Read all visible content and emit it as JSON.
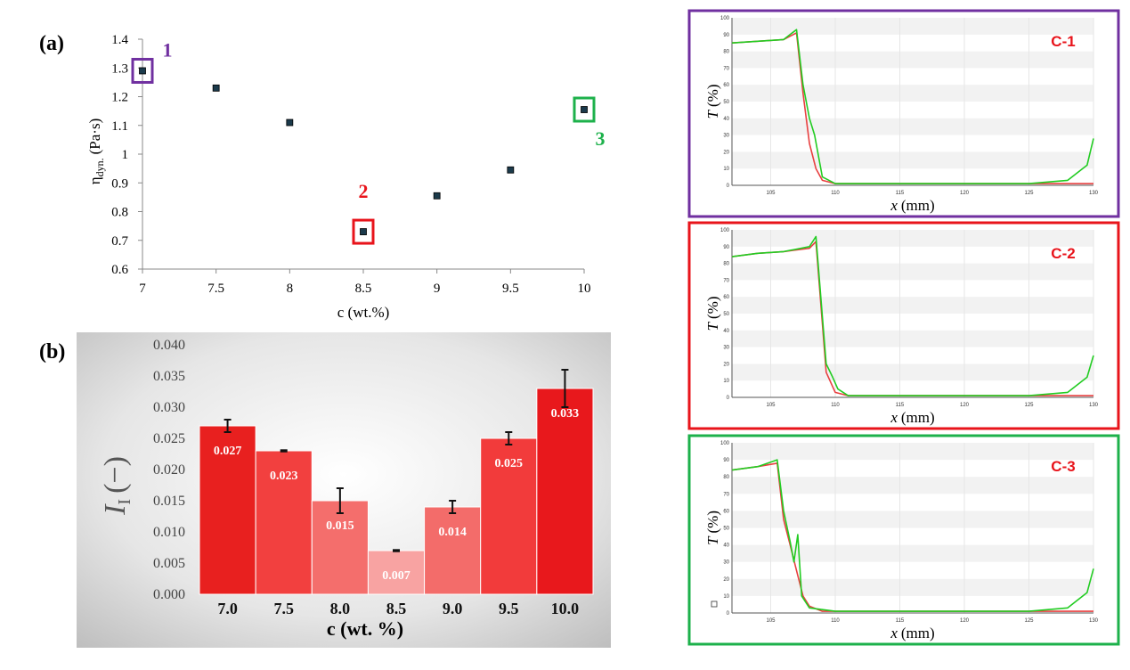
{
  "panel_a": {
    "label": "(a)",
    "ylabel_main": "η",
    "ylabel_sub": "dyn.",
    "ylabel_unit": "(Pa·s)",
    "xlabel": "c (wt.%)",
    "annotations": [
      {
        "text": "1",
        "color": "#7030A0",
        "x": 7.0,
        "y": 1.29
      },
      {
        "text": "2",
        "color": "#E8141B",
        "x": 8.5,
        "y": 0.73
      },
      {
        "text": "3",
        "color": "#1DB14B",
        "x": 10.0,
        "y": 1.155
      }
    ]
  },
  "panel_b": {
    "label": "(b)",
    "ylabel_main": "I",
    "ylabel_sub": "I",
    "ylabel_unit": "(−)",
    "xlabel": "c (wt. %)"
  },
  "panel_c": [
    {
      "tag": "C-1",
      "frame_color": "#7030A0",
      "ylabel": "T",
      "yunit": "(%)",
      "xlabel": "x",
      "xunit": "(mm)"
    },
    {
      "tag": "C-2",
      "frame_color": "#E8141B",
      "ylabel": "T",
      "yunit": "(%)",
      "xlabel": "x",
      "xunit": "(mm)"
    },
    {
      "tag": "C-3",
      "frame_color": "#1DB14B",
      "ylabel": "T",
      "yunit": "(%)",
      "xlabel": "x",
      "xunit": "(mm)"
    }
  ],
  "chart_data": [
    {
      "type": "scatter",
      "xlabel": "c (wt.%)",
      "ylabel": "ηdyn. (Pa·s)",
      "x": [
        7.0,
        7.5,
        8.0,
        8.5,
        9.0,
        9.5,
        10.0
      ],
      "y": [
        1.29,
        1.23,
        1.11,
        0.73,
        0.855,
        0.945,
        1.155
      ],
      "xlim": [
        7,
        10
      ],
      "ylim": [
        0.6,
        1.4
      ],
      "xticks": [
        "7",
        "7.5",
        "8",
        "8.5",
        "9",
        "9.5",
        "10"
      ],
      "yticks": [
        "0.6",
        "0.7",
        "0.8",
        "0.9",
        "1",
        "1.1",
        "1.2",
        "1.3",
        "1.4"
      ],
      "grid": false
    },
    {
      "type": "bar",
      "xlabel": "c (wt. %)",
      "ylabel": "II (−)",
      "categories": [
        "7.0",
        "7.5",
        "8.0",
        "8.5",
        "9.0",
        "9.5",
        "10.0"
      ],
      "values": [
        0.027,
        0.023,
        0.015,
        0.007,
        0.014,
        0.025,
        0.033
      ],
      "errors": [
        0.001,
        0.0001,
        0.002,
        0.0001,
        0.001,
        0.001,
        0.003
      ],
      "data_labels": [
        "0.027",
        "0.023",
        "0.015",
        "0.007",
        "0.014",
        "0.025",
        "0.033"
      ],
      "bar_colors": [
        "#E8201F",
        "#F2403F",
        "#F46E6C",
        "#F8A3A2",
        "#F36C6A",
        "#F23B3B",
        "#E8181C"
      ],
      "ylim": [
        0,
        0.04
      ],
      "yticks": [
        "0.000",
        "0.005",
        "0.010",
        "0.015",
        "0.020",
        "0.025",
        "0.030",
        "0.035",
        "0.040"
      ],
      "grid": false
    },
    {
      "type": "line",
      "title": "C-1",
      "xlabel": "x (mm)",
      "ylabel": "T (%)",
      "xlim": [
        102,
        130
      ],
      "ylim": [
        0,
        100
      ],
      "xticks": [
        "105",
        "110",
        "115",
        "120",
        "125",
        "130"
      ],
      "yticks": [
        "0",
        "10",
        "20",
        "30",
        "40",
        "50",
        "60",
        "70",
        "80",
        "90",
        "100"
      ],
      "series": [
        {
          "color": "#22CC22",
          "x": [
            102,
            104,
            106,
            107,
            107.5,
            108,
            108.4,
            109,
            110,
            115,
            120,
            125,
            128,
            129.5,
            130
          ],
          "y": [
            85,
            86,
            87,
            93,
            60,
            40,
            30,
            5,
            1,
            1,
            1,
            1,
            3,
            12,
            28
          ]
        },
        {
          "color": "#E84040",
          "x": [
            102,
            104,
            106,
            107,
            107.5,
            108,
            108.5,
            109,
            110,
            130
          ],
          "y": [
            85,
            86,
            87,
            91,
            55,
            25,
            10,
            3,
            1,
            1
          ]
        }
      ]
    },
    {
      "type": "line",
      "title": "C-2",
      "xlabel": "x (mm)",
      "ylabel": "T (%)",
      "xlim": [
        102,
        130
      ],
      "ylim": [
        0,
        100
      ],
      "xticks": [
        "105",
        "110",
        "115",
        "120",
        "125",
        "130"
      ],
      "yticks": [
        "0",
        "10",
        "20",
        "30",
        "40",
        "50",
        "60",
        "70",
        "80",
        "90",
        "100"
      ],
      "series": [
        {
          "color": "#22CC22",
          "x": [
            102,
            104,
            106,
            108,
            108.5,
            109.3,
            109.8,
            110.2,
            111,
            115,
            120,
            125,
            128,
            129.5,
            130
          ],
          "y": [
            84,
            86,
            87,
            90,
            96,
            20,
            12,
            5,
            1,
            1,
            1,
            1,
            3,
            12,
            25
          ]
        },
        {
          "color": "#E84040",
          "x": [
            102,
            104,
            106,
            108,
            108.5,
            109.3,
            110,
            111,
            130
          ],
          "y": [
            84,
            86,
            87,
            89,
            93,
            15,
            3,
            1,
            1
          ]
        }
      ]
    },
    {
      "type": "line",
      "title": "C-3",
      "xlabel": "x (mm)",
      "ylabel": "T (%)",
      "xlim": [
        102,
        130
      ],
      "ylim": [
        0,
        100
      ],
      "xticks": [
        "105",
        "110",
        "115",
        "120",
        "125",
        "130"
      ],
      "yticks": [
        "0",
        "10",
        "20",
        "30",
        "40",
        "50",
        "60",
        "70",
        "80",
        "90",
        "100"
      ],
      "series": [
        {
          "color": "#22CC22",
          "x": [
            102,
            104,
            105.5,
            106,
            106.5,
            106.8,
            107.1,
            107.4,
            108,
            110,
            115,
            120,
            125,
            128,
            129.5,
            130
          ],
          "y": [
            84,
            86,
            90,
            60,
            42,
            30,
            46,
            10,
            3,
            1,
            1,
            1,
            1,
            3,
            12,
            26
          ]
        },
        {
          "color": "#E84040",
          "x": [
            102,
            104,
            105.5,
            106,
            106.5,
            107,
            107.5,
            108,
            109,
            130
          ],
          "y": [
            84,
            86,
            88,
            55,
            40,
            25,
            10,
            4,
            1,
            1
          ]
        }
      ]
    }
  ]
}
